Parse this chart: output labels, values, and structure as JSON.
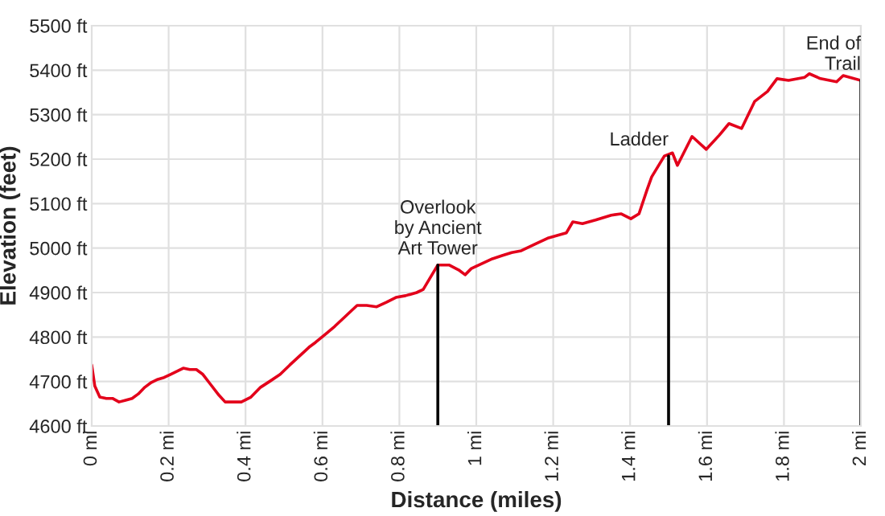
{
  "chart_data": {
    "type": "line",
    "xlabel": "Distance (miles)",
    "ylabel": "Elevation (feet)",
    "x": [
      0,
      0.008,
      0.021,
      0.038,
      0.054,
      0.071,
      0.088,
      0.105,
      0.121,
      0.138,
      0.155,
      0.172,
      0.188,
      0.205,
      0.222,
      0.238,
      0.255,
      0.272,
      0.289,
      0.305,
      0.331,
      0.347,
      0.389,
      0.414,
      0.439,
      0.464,
      0.49,
      0.515,
      0.565,
      0.582,
      0.607,
      0.632,
      0.69,
      0.715,
      0.741,
      0.766,
      0.791,
      0.816,
      0.845,
      0.862,
      0.9,
      0.929,
      0.954,
      0.971,
      0.987,
      1.042,
      1.067,
      1.092,
      1.117,
      1.151,
      1.188,
      1.234,
      1.251,
      1.276,
      1.31,
      1.351,
      1.377,
      1.402,
      1.423,
      1.444,
      1.456,
      1.489,
      1.51,
      1.523,
      1.561,
      1.598,
      1.632,
      1.657,
      1.69,
      1.724,
      1.757,
      1.782,
      1.812,
      1.854,
      1.866,
      1.895,
      1.937,
      1.954,
      2.0
    ],
    "series": [
      {
        "color": "#e3001b",
        "values": [
          4737,
          4690,
          4665,
          4662,
          4662,
          4654,
          4658,
          4662,
          4672,
          4687,
          4698,
          4705,
          4709,
          4716,
          4723,
          4730,
          4727,
          4727,
          4716,
          4698,
          4669,
          4654,
          4654,
          4665,
          4687,
          4701,
          4716,
          4737,
          4777,
          4788,
          4806,
          4824,
          4871,
          4871,
          4868,
          4878,
          4889,
          4893,
          4900,
          4907,
          4962,
          4962,
          4951,
          4940,
          4954,
          4976,
          4983,
          4990,
          4994,
          5008,
          5023,
          5034,
          5059,
          5055,
          5063,
          5074,
          5077,
          5066,
          5077,
          5131,
          5160,
          5207,
          5214,
          5186,
          5251,
          5222,
          5254,
          5280,
          5269,
          5330,
          5352,
          5381,
          5377,
          5384,
          5392,
          5381,
          5374,
          5388,
          5377
        ]
      }
    ],
    "xlim": [
      0,
      2
    ],
    "ylim": [
      4600,
      5500
    ],
    "xticks": [
      {
        "value": 0,
        "label": "0 mi"
      },
      {
        "value": 0.2,
        "label": "0.2 mi"
      },
      {
        "value": 0.4,
        "label": "0.4 mi"
      },
      {
        "value": 0.6,
        "label": "0.6 mi"
      },
      {
        "value": 0.8,
        "label": "0.8 mi"
      },
      {
        "value": 1,
        "label": "1 mi"
      },
      {
        "value": 1.2,
        "label": "1.2 mi"
      },
      {
        "value": 1.4,
        "label": "1.4 mi"
      },
      {
        "value": 1.6,
        "label": "1.6 mi"
      },
      {
        "value": 1.8,
        "label": "1.8 mi"
      },
      {
        "value": 2,
        "label": "2 mi"
      }
    ],
    "yticks": [
      {
        "value": 4600,
        "label": "4600 ft"
      },
      {
        "value": 4700,
        "label": "4700 ft"
      },
      {
        "value": 4800,
        "label": "4800 ft"
      },
      {
        "value": 4900,
        "label": "4900 ft"
      },
      {
        "value": 5000,
        "label": "5000 ft"
      },
      {
        "value": 5100,
        "label": "5100 ft"
      },
      {
        "value": 5200,
        "label": "5200 ft"
      },
      {
        "value": 5300,
        "label": "5300 ft"
      },
      {
        "value": 5400,
        "label": "5400 ft"
      },
      {
        "value": 5500,
        "label": "5500 ft"
      }
    ],
    "grid": true,
    "annotations": [
      {
        "text": "Overlook\nby Ancient\nArt Tower",
        "x": 0.9,
        "y": 4962
      },
      {
        "text": "Ladder",
        "x": 1.5,
        "y": 5207
      },
      {
        "text": "End of\nTrail",
        "x": 2,
        "y": 5377
      }
    ]
  }
}
